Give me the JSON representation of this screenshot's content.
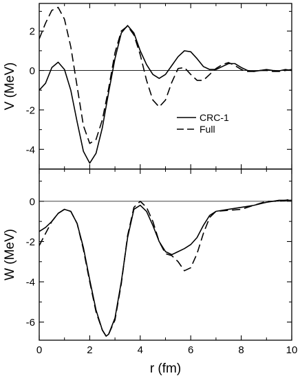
{
  "chart_data": [
    {
      "type": "line",
      "ylabel": "V (MeV)",
      "xlim": [
        0,
        10
      ],
      "ylim": [
        -5.0,
        3.4
      ],
      "xticks": [
        "0",
        "2",
        "4",
        "6",
        "8",
        "10"
      ],
      "yticks": [
        {
          "value": -4,
          "label": "-4"
        },
        {
          "value": -2,
          "label": "-2"
        },
        {
          "value": 0,
          "label": "0"
        },
        {
          "value": 2,
          "label": "2"
        }
      ],
      "reference_line": 0,
      "legend": {
        "position": "center-right"
      },
      "series": [
        {
          "name": "CRC-1",
          "style": "solid",
          "points": [
            [
              0,
              -1.0
            ],
            [
              0.25,
              -0.65
            ],
            [
              0.5,
              0.15
            ],
            [
              0.75,
              0.42
            ],
            [
              1.0,
              0.05
            ],
            [
              1.25,
              -1.0
            ],
            [
              1.5,
              -2.6
            ],
            [
              1.75,
              -4.1
            ],
            [
              2.0,
              -4.7
            ],
            [
              2.25,
              -4.2
            ],
            [
              2.5,
              -2.9
            ],
            [
              2.75,
              -1.1
            ],
            [
              3.0,
              0.6
            ],
            [
              3.25,
              1.9
            ],
            [
              3.5,
              2.28
            ],
            [
              3.75,
              1.9
            ],
            [
              4.0,
              1.0
            ],
            [
              4.25,
              0.3
            ],
            [
              4.5,
              -0.2
            ],
            [
              4.75,
              -0.4
            ],
            [
              5.0,
              -0.2
            ],
            [
              5.25,
              0.25
            ],
            [
              5.5,
              0.7
            ],
            [
              5.75,
              1.0
            ],
            [
              6.0,
              0.95
            ],
            [
              6.25,
              0.6
            ],
            [
              6.5,
              0.2
            ],
            [
              6.75,
              0.05
            ],
            [
              7.0,
              0.05
            ],
            [
              7.25,
              0.2
            ],
            [
              7.5,
              0.35
            ],
            [
              7.75,
              0.35
            ],
            [
              8.0,
              0.15
            ],
            [
              8.25,
              0.0
            ],
            [
              8.5,
              -0.05
            ],
            [
              8.75,
              0.0
            ],
            [
              9.0,
              0.05
            ],
            [
              9.25,
              0.0
            ],
            [
              9.5,
              -0.02
            ],
            [
              9.75,
              0.05
            ],
            [
              10.0,
              0.0
            ]
          ]
        },
        {
          "name": "Full",
          "style": "dashed",
          "points": [
            [
              0,
              1.6
            ],
            [
              0.25,
              2.4
            ],
            [
              0.5,
              3.05
            ],
            [
              0.75,
              3.2
            ],
            [
              1.0,
              2.6
            ],
            [
              1.25,
              1.2
            ],
            [
              1.5,
              -0.8
            ],
            [
              1.75,
              -2.8
            ],
            [
              2.0,
              -3.7
            ],
            [
              2.25,
              -3.5
            ],
            [
              2.5,
              -2.5
            ],
            [
              2.75,
              -0.9
            ],
            [
              3.0,
              0.9
            ],
            [
              3.25,
              2.0
            ],
            [
              3.5,
              2.25
            ],
            [
              3.75,
              1.8
            ],
            [
              4.0,
              0.8
            ],
            [
              4.25,
              -0.5
            ],
            [
              4.5,
              -1.5
            ],
            [
              4.75,
              -1.85
            ],
            [
              5.0,
              -1.5
            ],
            [
              5.25,
              -0.6
            ],
            [
              5.5,
              0.1
            ],
            [
              5.75,
              0.15
            ],
            [
              6.0,
              -0.2
            ],
            [
              6.25,
              -0.5
            ],
            [
              6.5,
              -0.5
            ],
            [
              6.75,
              -0.2
            ],
            [
              7.0,
              0.1
            ],
            [
              7.25,
              0.3
            ],
            [
              7.5,
              0.4
            ],
            [
              7.75,
              0.25
            ],
            [
              8.0,
              0.05
            ],
            [
              8.25,
              -0.05
            ],
            [
              8.5,
              -0.05
            ],
            [
              8.75,
              0.0
            ],
            [
              9.0,
              0.0
            ],
            [
              9.25,
              -0.05
            ],
            [
              9.5,
              -0.05
            ],
            [
              9.75,
              0.0
            ],
            [
              10.0,
              0.05
            ]
          ]
        }
      ]
    },
    {
      "type": "line",
      "ylabel": "W (MeV)",
      "xlabel": "r (fm)",
      "xlim": [
        0,
        10
      ],
      "ylim": [
        -6.9,
        1.6
      ],
      "xticks": [
        "0",
        "2",
        "4",
        "6",
        "8",
        "10"
      ],
      "yticks": [
        {
          "value": -6,
          "label": "-6"
        },
        {
          "value": -4,
          "label": "-4"
        },
        {
          "value": -2,
          "label": "-2"
        },
        {
          "value": 0,
          "label": "0"
        }
      ],
      "reference_line": 0,
      "series": [
        {
          "name": "CRC-1",
          "style": "solid",
          "points": [
            [
              0,
              -1.5
            ],
            [
              0.25,
              -1.3
            ],
            [
              0.5,
              -1.0
            ],
            [
              0.75,
              -0.6
            ],
            [
              1.0,
              -0.4
            ],
            [
              1.25,
              -0.5
            ],
            [
              1.5,
              -1.1
            ],
            [
              1.75,
              -2.3
            ],
            [
              2.0,
              -3.9
            ],
            [
              2.25,
              -5.4
            ],
            [
              2.5,
              -6.4
            ],
            [
              2.65,
              -6.7
            ],
            [
              2.75,
              -6.6
            ],
            [
              3.0,
              -5.8
            ],
            [
              3.25,
              -4.0
            ],
            [
              3.5,
              -1.8
            ],
            [
              3.75,
              -0.4
            ],
            [
              4.0,
              -0.2
            ],
            [
              4.25,
              -0.5
            ],
            [
              4.5,
              -1.2
            ],
            [
              4.75,
              -2.0
            ],
            [
              5.0,
              -2.5
            ],
            [
              5.25,
              -2.65
            ],
            [
              5.5,
              -2.5
            ],
            [
              5.75,
              -2.35
            ],
            [
              6.0,
              -2.15
            ],
            [
              6.25,
              -1.8
            ],
            [
              6.5,
              -1.2
            ],
            [
              6.75,
              -0.7
            ],
            [
              7.0,
              -0.5
            ],
            [
              7.5,
              -0.4
            ],
            [
              8.0,
              -0.3
            ],
            [
              8.5,
              -0.2
            ],
            [
              9.0,
              -0.05
            ],
            [
              9.5,
              0.05
            ],
            [
              10.0,
              0.05
            ]
          ]
        },
        {
          "name": "Full",
          "style": "dashed",
          "points": [
            [
              0,
              -2.2
            ],
            [
              0.25,
              -1.6
            ],
            [
              0.5,
              -1.0
            ],
            [
              0.75,
              -0.6
            ],
            [
              1.0,
              -0.4
            ],
            [
              1.25,
              -0.5
            ],
            [
              1.5,
              -1.1
            ],
            [
              1.75,
              -2.4
            ],
            [
              2.0,
              -4.0
            ],
            [
              2.25,
              -5.5
            ],
            [
              2.5,
              -6.4
            ],
            [
              2.65,
              -6.7
            ],
            [
              2.75,
              -6.6
            ],
            [
              3.0,
              -5.9
            ],
            [
              3.25,
              -4.1
            ],
            [
              3.5,
              -1.7
            ],
            [
              3.75,
              -0.3
            ],
            [
              4.0,
              0.0
            ],
            [
              4.25,
              -0.3
            ],
            [
              4.5,
              -1.0
            ],
            [
              4.75,
              -2.0
            ],
            [
              5.0,
              -2.6
            ],
            [
              5.25,
              -2.7
            ],
            [
              5.5,
              -3.0
            ],
            [
              5.75,
              -3.45
            ],
            [
              6.0,
              -3.3
            ],
            [
              6.25,
              -2.6
            ],
            [
              6.5,
              -1.6
            ],
            [
              6.75,
              -0.8
            ],
            [
              7.0,
              -0.5
            ],
            [
              7.5,
              -0.45
            ],
            [
              8.0,
              -0.4
            ],
            [
              8.5,
              -0.2
            ],
            [
              9.0,
              0.0
            ],
            [
              9.5,
              0.0
            ],
            [
              10.0,
              0.1
            ]
          ]
        }
      ]
    }
  ]
}
